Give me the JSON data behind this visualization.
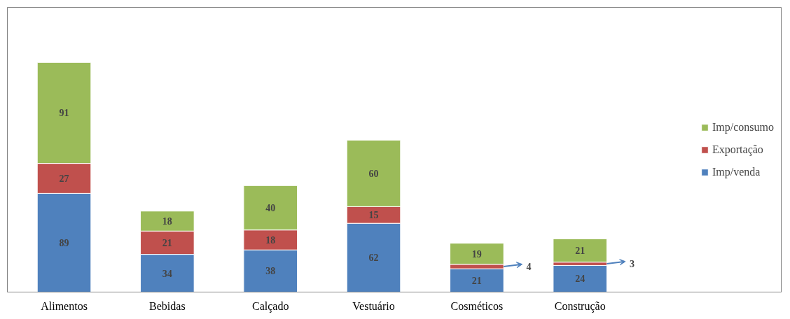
{
  "chart_data": {
    "type": "bar",
    "stacked": true,
    "data_labels": true,
    "legend": "right",
    "grid": false,
    "categories": [
      "Alimentos",
      "Bebidas",
      "Calçado",
      "Vestuário",
      "Cosméticos",
      "Construção"
    ],
    "series": [
      {
        "name": "Imp/venda",
        "color": "#4f81bd",
        "values": [
          89,
          34,
          38,
          62,
          21,
          24
        ]
      },
      {
        "name": "Exportação",
        "color": "#c0504d",
        "values": [
          27,
          21,
          18,
          15,
          4,
          3
        ]
      },
      {
        "name": "Imp/consumo",
        "color": "#9bbb59",
        "values": [
          91,
          18,
          40,
          60,
          19,
          21
        ]
      }
    ]
  }
}
